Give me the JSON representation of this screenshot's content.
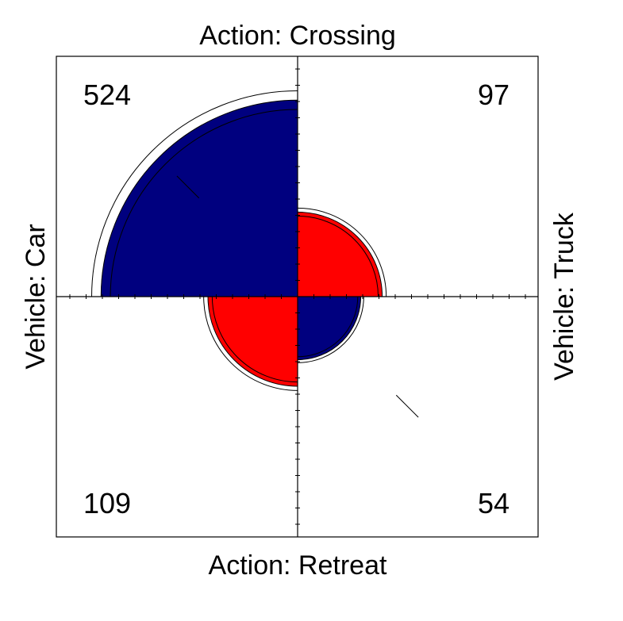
{
  "chart_data": {
    "type": "fourfold",
    "labels": {
      "top": "Action: Crossing",
      "bottom": "Action: Retreat",
      "left": "Vehicle: Car",
      "right": "Vehicle: Truck"
    },
    "cells": [
      {
        "action": "Crossing",
        "vehicle": "Car",
        "count": 524,
        "color": "#00007f"
      },
      {
        "action": "Crossing",
        "vehicle": "Truck",
        "count": 97,
        "color": "#ff0000"
      },
      {
        "action": "Retreat",
        "vehicle": "Car",
        "count": 109,
        "color": "#ff0000"
      },
      {
        "action": "Retreat",
        "vehicle": "Truck",
        "count": 54,
        "color": "#00007f"
      }
    ]
  }
}
